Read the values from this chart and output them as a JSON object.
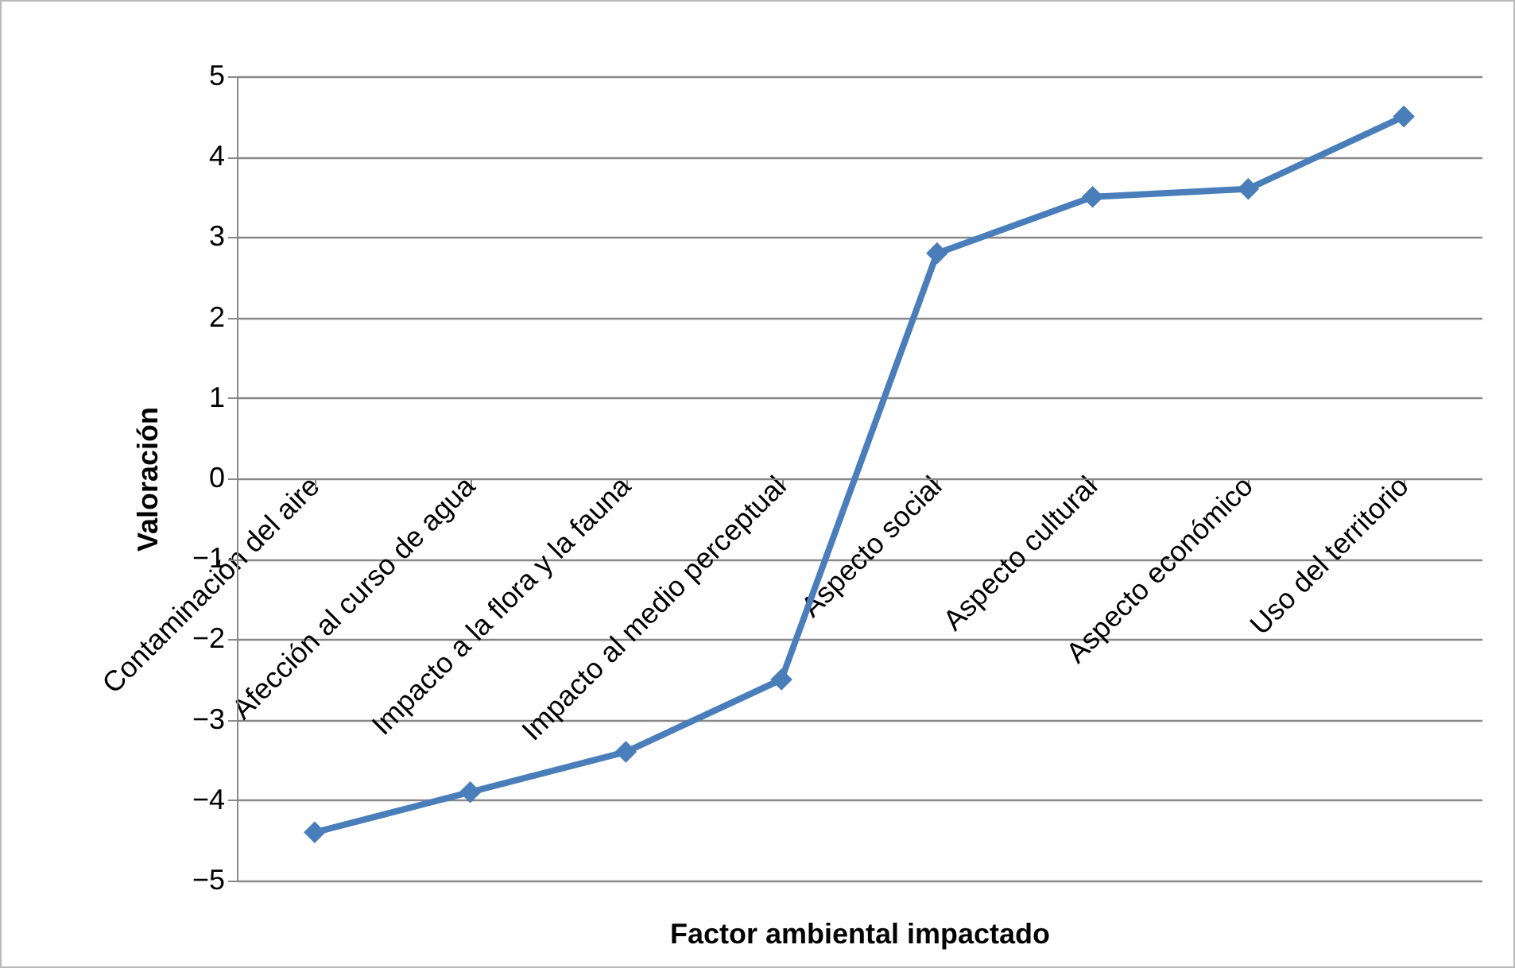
{
  "chart_data": {
    "type": "line",
    "xlabel": "Factor ambiental impactado",
    "ylabel": "Valoración",
    "categories": [
      "Contaminación del aire",
      "Afección al curso de agua",
      "Impacto a la flora y la fauna",
      "Impacto al medio perceptual",
      "Aspecto social",
      "Aspecto cultural",
      "Aspecto económico",
      "Uso del territorio"
    ],
    "series": [
      {
        "color": "#4a7ebb",
        "values": [
          -4.4,
          -3.9,
          -3.4,
          -2.5,
          2.8,
          3.5,
          3.6,
          4.5
        ]
      }
    ],
    "ylim": [
      -5,
      5
    ],
    "yticks": [
      -5,
      -4,
      -3,
      -2,
      -1,
      0,
      1,
      2,
      3,
      4,
      5
    ],
    "grid": "y",
    "marker": "diamond",
    "line_style": "solid",
    "legend": false
  }
}
